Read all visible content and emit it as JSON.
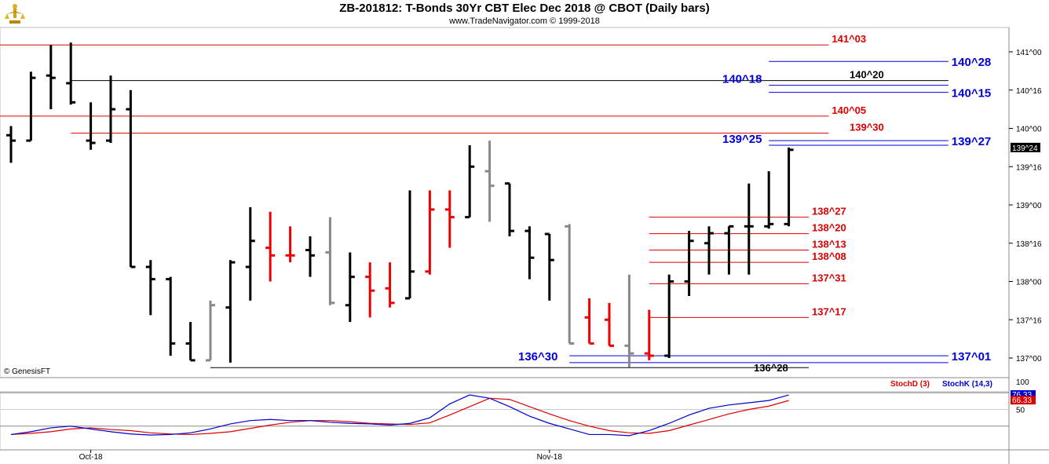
{
  "header": {
    "title": "ZB-201812:  T-Bonds 30Yr CBT Elec Dec 2018 @ CBOT  (Daily bars)",
    "subtitle": "www.TradeNavigator.com © 1999-2018"
  },
  "copyright": "© GenesisFT",
  "colors": {
    "up": "#000000",
    "down": "#ee0000",
    "neutral": "#888888",
    "blue_level": "#0000dd",
    "red_level": "#dd0000",
    "black_level": "#000000",
    "stoch_d": "#dd0000",
    "stoch_k": "#0000cc"
  },
  "chart_data": [
    {
      "type": "bar",
      "subtype": "ohlc",
      "price_unit": "32nds",
      "y_ticks": [
        "141^00",
        "140^16",
        "140^00",
        "139^16",
        "139^00",
        "138^16",
        "138^00",
        "137^16",
        "137^00"
      ],
      "y_tick_values": [
        141.0,
        140.5,
        140.0,
        139.5,
        139.0,
        138.5,
        138.0,
        137.5,
        137.0
      ],
      "x_labels": [
        {
          "label": "Oct-18",
          "bar": 4
        },
        {
          "label": "Nov-18",
          "bar": 27
        }
      ],
      "last_price_label": "139^24",
      "last_price": 139.75,
      "bars": [
        {
          "o": 139.91,
          "h": 140.03,
          "l": 139.55,
          "c": 139.84,
          "color": "black"
        },
        {
          "o": 139.84,
          "h": 140.74,
          "l": 139.84,
          "c": 140.66,
          "color": "black"
        },
        {
          "o": 140.69,
          "h": 141.09,
          "l": 140.25,
          "c": 140.66,
          "color": "black"
        },
        {
          "o": 140.59,
          "h": 141.12,
          "l": 140.31,
          "c": 140.34,
          "color": "black"
        },
        {
          "o": 139.84,
          "h": 140.34,
          "l": 139.72,
          "c": 139.81,
          "color": "black"
        },
        {
          "o": 139.84,
          "h": 140.69,
          "l": 139.81,
          "c": 140.25,
          "color": "black"
        },
        {
          "o": 140.25,
          "h": 140.5,
          "l": 138.19,
          "c": 138.19,
          "color": "black"
        },
        {
          "o": 138.19,
          "h": 138.28,
          "l": 137.56,
          "c": 138.03,
          "color": "black"
        },
        {
          "o": 138.03,
          "h": 138.06,
          "l": 137.03,
          "c": 137.19,
          "color": "black"
        },
        {
          "o": 137.19,
          "h": 137.47,
          "l": 136.97,
          "c": 136.97,
          "color": "black"
        },
        {
          "o": 136.97,
          "h": 137.75,
          "l": 136.97,
          "c": 137.69,
          "color": "grey"
        },
        {
          "o": 137.66,
          "h": 138.28,
          "l": 136.94,
          "c": 138.25,
          "color": "black"
        },
        {
          "o": 138.19,
          "h": 138.97,
          "l": 137.75,
          "c": 138.53,
          "color": "black"
        },
        {
          "o": 138.44,
          "h": 138.91,
          "l": 138.0,
          "c": 138.34,
          "color": "red"
        },
        {
          "o": 138.34,
          "h": 138.72,
          "l": 138.25,
          "c": 138.34,
          "color": "red"
        },
        {
          "o": 138.41,
          "h": 138.59,
          "l": 138.06,
          "c": 138.34,
          "color": "black"
        },
        {
          "o": 138.38,
          "h": 138.84,
          "l": 137.69,
          "c": 137.72,
          "color": "grey"
        },
        {
          "o": 137.69,
          "h": 138.38,
          "l": 137.47,
          "c": 138.06,
          "color": "black"
        },
        {
          "o": 138.06,
          "h": 138.25,
          "l": 137.53,
          "c": 137.88,
          "color": "red"
        },
        {
          "o": 137.91,
          "h": 138.25,
          "l": 137.66,
          "c": 137.72,
          "color": "red"
        },
        {
          "o": 137.78,
          "h": 139.19,
          "l": 137.78,
          "c": 138.13,
          "color": "black"
        },
        {
          "o": 138.13,
          "h": 139.19,
          "l": 138.09,
          "c": 138.94,
          "color": "red"
        },
        {
          "o": 138.94,
          "h": 139.19,
          "l": 138.44,
          "c": 138.84,
          "color": "red"
        },
        {
          "o": 138.84,
          "h": 139.78,
          "l": 138.84,
          "c": 139.5,
          "color": "black"
        },
        {
          "o": 139.44,
          "h": 139.84,
          "l": 138.78,
          "c": 139.25,
          "color": "grey"
        },
        {
          "o": 139.28,
          "h": 139.28,
          "l": 138.59,
          "c": 138.66,
          "color": "black"
        },
        {
          "o": 138.66,
          "h": 138.72,
          "l": 138.03,
          "c": 138.31,
          "color": "black"
        },
        {
          "o": 138.62,
          "h": 138.62,
          "l": 137.75,
          "c": 138.28,
          "color": "black"
        },
        {
          "o": 138.72,
          "h": 138.75,
          "l": 137.19,
          "c": 137.19,
          "color": "grey"
        },
        {
          "o": 137.53,
          "h": 137.78,
          "l": 137.19,
          "c": 137.19,
          "color": "red"
        },
        {
          "o": 137.5,
          "h": 137.72,
          "l": 137.16,
          "c": 137.16,
          "color": "red"
        },
        {
          "o": 137.16,
          "h": 138.09,
          "l": 136.88,
          "c": 137.06,
          "color": "grey"
        },
        {
          "o": 137.06,
          "h": 137.63,
          "l": 136.97,
          "c": 137.03,
          "color": "red"
        },
        {
          "o": 137.03,
          "h": 138.09,
          "l": 137.0,
          "c": 138.0,
          "color": "black"
        },
        {
          "o": 138.0,
          "h": 138.66,
          "l": 137.81,
          "c": 138.53,
          "color": "black"
        },
        {
          "o": 138.5,
          "h": 138.72,
          "l": 138.09,
          "c": 138.63,
          "color": "black"
        },
        {
          "o": 138.63,
          "h": 138.72,
          "l": 138.09,
          "c": 138.72,
          "color": "black"
        },
        {
          "o": 138.72,
          "h": 139.28,
          "l": 138.09,
          "c": 138.72,
          "color": "black"
        },
        {
          "o": 138.72,
          "h": 139.44,
          "l": 138.69,
          "c": 138.75,
          "color": "black"
        },
        {
          "o": 138.75,
          "h": 139.75,
          "l": 138.72,
          "c": 139.72,
          "color": "black"
        }
      ],
      "levels": [
        {
          "label": "141^03",
          "price": 141.09,
          "color": "red",
          "from": -2,
          "to": 41
        },
        {
          "label": "140^28",
          "price": 140.875,
          "color": "blue",
          "from": 38,
          "to": 47
        },
        {
          "label": "140^20",
          "price": 140.625,
          "color": "black",
          "from": 3,
          "to": 47
        },
        {
          "label": "140^18",
          "price": 140.5625,
          "color": "blue",
          "from": 38,
          "to": 47
        },
        {
          "label": "140^15",
          "price": 140.47,
          "color": "blue",
          "from": 38,
          "to": 47
        },
        {
          "label": "140^05",
          "price": 140.16,
          "color": "red",
          "from": -2,
          "to": 41
        },
        {
          "label": "139^30",
          "price": 139.9375,
          "color": "red",
          "from": 3,
          "to": 41
        },
        {
          "label": "139^27",
          "price": 139.84,
          "color": "blue",
          "from": 38,
          "to": 47
        },
        {
          "label": "139^25",
          "price": 139.78,
          "color": "blue",
          "from": 38,
          "to": 47
        },
        {
          "label": "138^27",
          "price": 138.84,
          "color": "red",
          "from": 32,
          "to": 40
        },
        {
          "label": "138^20",
          "price": 138.625,
          "color": "red",
          "from": 32,
          "to": 40
        },
        {
          "label": "138^13",
          "price": 138.41,
          "color": "red",
          "from": 32,
          "to": 40
        },
        {
          "label": "138^08",
          "price": 138.25,
          "color": "red",
          "from": 32,
          "to": 40
        },
        {
          "label": "137^31",
          "price": 137.97,
          "color": "red",
          "from": 32,
          "to": 40
        },
        {
          "label": "137^17",
          "price": 137.53,
          "color": "red",
          "from": 32,
          "to": 40
        },
        {
          "label": "137^01",
          "price": 137.03,
          "color": "blue",
          "from": 28,
          "to": 47
        },
        {
          "label": "136^30",
          "price": 136.94,
          "color": "blue",
          "from": 28,
          "to": 47
        },
        {
          "label": "136^28",
          "price": 136.875,
          "color": "black",
          "from": 10,
          "to": 40
        }
      ]
    },
    {
      "type": "line",
      "series": [
        {
          "name": "StochD (3)",
          "values": [
            5,
            7,
            10,
            15,
            17,
            14,
            12,
            8,
            6,
            5,
            7,
            10,
            16,
            22,
            27,
            30,
            30,
            28,
            25,
            24,
            23,
            26,
            40,
            55,
            70,
            68,
            55,
            42,
            30,
            20,
            12,
            8,
            7,
            12,
            22,
            32,
            42,
            50,
            56,
            66
          ]
        },
        {
          "name": "StochK (14,3)",
          "values": [
            5,
            10,
            17,
            20,
            15,
            10,
            6,
            4,
            5,
            8,
            15,
            24,
            30,
            32,
            30,
            30,
            27,
            25,
            24,
            22,
            25,
            35,
            60,
            76,
            70,
            55,
            38,
            25,
            15,
            5,
            5,
            3,
            12,
            25,
            40,
            52,
            58,
            62,
            66,
            76
          ]
        }
      ],
      "y_ticks": [
        "100",
        "50"
      ],
      "ylim": [
        0,
        100
      ],
      "last_values": {
        "k": "76.33",
        "d": "66.33"
      }
    }
  ]
}
